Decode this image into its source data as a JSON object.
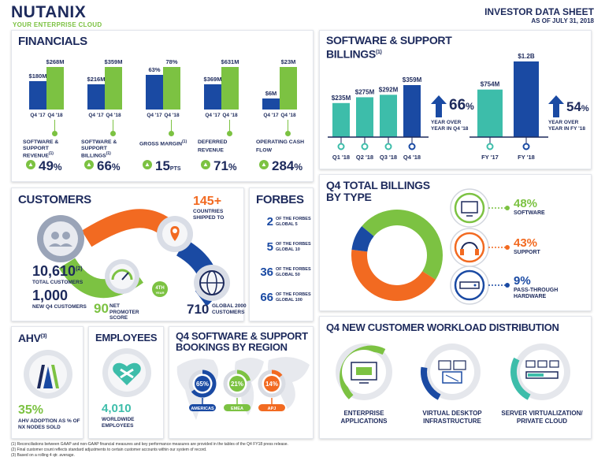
{
  "header": {
    "logo": "NUTANIX",
    "tagline": "YOUR ENTERPRISE CLOUD",
    "title": "INVESTOR DATA SHEET",
    "date": "AS OF JULY 31, 2018"
  },
  "financials": {
    "title": "FINANCIALS",
    "metrics": [
      {
        "label": "SOFTWARE & SUPPORT REVENUE",
        "sup": "(1)",
        "q417": 180,
        "q418": 268,
        "q417_label": "$180M",
        "q418_label": "$268M",
        "growth": "49",
        "growth_unit": "%"
      },
      {
        "label": "SOFTWARE & SUPPORT BILLINGS",
        "sup": "(1)",
        "q417": 216,
        "q418": 359,
        "q417_label": "$216M",
        "q418_label": "$359M",
        "growth": "66",
        "growth_unit": "%"
      },
      {
        "label": "GROSS MARGIN",
        "sup": "(1)",
        "q417": 63,
        "q418": 78,
        "q417_label": "63%",
        "q418_label": "78%",
        "growth": "15",
        "growth_unit": "PTS"
      },
      {
        "label": "DEFERRED REVENUE",
        "sup": "",
        "q417": 369,
        "q418": 631,
        "q417_label": "$369M",
        "q418_label": "$631M",
        "growth": "71",
        "growth_unit": "%"
      },
      {
        "label": "OPERATING CASH FLOW",
        "sup": "",
        "q417": 6,
        "q418": 23,
        "q417_label": "$6M",
        "q418_label": "$23M",
        "growth": "284",
        "growth_unit": "%"
      }
    ],
    "q417_tick": "Q4 '17",
    "q418_tick": "Q4 '18"
  },
  "billings": {
    "title": "SOFTWARE & SUPPORT BILLINGS",
    "sup": "(1)",
    "quarters": [
      {
        "label": "Q1 '18",
        "value": 235,
        "value_label": "$235M"
      },
      {
        "label": "Q2 '18",
        "value": 275,
        "value_label": "$275M"
      },
      {
        "label": "Q3 '18",
        "value": 292,
        "value_label": "$292M"
      },
      {
        "label": "Q4 '18",
        "value": 359,
        "value_label": "$359M"
      }
    ],
    "quarter_growth": "66",
    "quarter_growth_unit": "%",
    "quarter_growth_text": "YEAR OVER YEAR IN Q4 '18",
    "years": [
      {
        "label": "FY '17",
        "value": 754,
        "value_label": "$754M"
      },
      {
        "label": "FY '18",
        "value": 1200,
        "value_label": "$1.2B"
      }
    ],
    "year_growth": "54",
    "year_growth_unit": "%",
    "year_growth_text": "YEAR OVER YEAR IN FY '18"
  },
  "customers": {
    "title": "CUSTOMERS",
    "countries": "145+",
    "countries_text": "COUNTRIES SHIPPED TO",
    "total": "10,610",
    "total_sup": "(2)",
    "total_text": "TOTAL CUSTOMERS",
    "new": "1,000",
    "new_text": "NEW Q4 CUSTOMERS",
    "nps": "90",
    "nps_text": "NET PROMOTER SCORE",
    "nps_badge": "4TH",
    "nps_badge_sub": "YEAR",
    "global2000": "710",
    "global2000_text": "GLOBAL 2000 CUSTOMERS"
  },
  "forbes": {
    "title": "FORBES",
    "items": [
      {
        "num": "2",
        "line1": "OF THE FORBES",
        "line2": "GLOBAL 5"
      },
      {
        "num": "5",
        "line1": "OF THE FORBES",
        "line2": "GLOBAL 10"
      },
      {
        "num": "36",
        "line1": "OF THE FORBES",
        "line2": "GLOBAL 50"
      },
      {
        "num": "66",
        "line1": "OF THE FORBES",
        "line2": "GLOBAL 100"
      }
    ]
  },
  "billings_type": {
    "title_line1": "Q4 TOTAL BILLINGS",
    "title_line2": "BY TYPE",
    "slices": [
      {
        "name": "SOFTWARE",
        "value": 48,
        "label": "48%",
        "color": "#7cc242"
      },
      {
        "name": "SUPPORT",
        "value": 43,
        "label": "43%",
        "color": "#f26a21"
      },
      {
        "name": "PASS-THROUGH HARDWARE",
        "value": 9,
        "label": "9%",
        "color": "#1a4aa3"
      }
    ]
  },
  "ahv": {
    "title": "AHV",
    "sup": "(3)",
    "value": "35%",
    "text": "AHV ADOPTION AS % OF NX NODES SOLD"
  },
  "employees": {
    "title": "EMPLOYEES",
    "value": "4,010",
    "text": "WORLDWIDE EMPLOYEES"
  },
  "region": {
    "title_line1": "Q4 SOFTWARE & SUPPORT",
    "title_line2": "BOOKINGS BY REGION",
    "items": [
      {
        "name": "AMERICAS",
        "value": 65,
        "label": "65%",
        "color": "#1a4aa3"
      },
      {
        "name": "EMEA",
        "value": 21,
        "label": "21%",
        "color": "#7cc242"
      },
      {
        "name": "APJ",
        "value": 14,
        "label": "14%",
        "color": "#f26a21"
      }
    ]
  },
  "workload": {
    "title": "Q4 NEW CUSTOMER WORKLOAD DISTRIBUTION",
    "items": [
      {
        "line1": "ENTERPRISE",
        "line2": "APPLICATIONS",
        "color": "#7cc242",
        "fill": 0.55
      },
      {
        "line1": "VIRTUAL DESKTOP",
        "line2": "INFRASTRUCTURE",
        "color": "#1a4aa3",
        "fill": 0.2
      },
      {
        "line1": "SERVER VIRTUALIZATION/",
        "line2": "PRIVATE CLOUD",
        "color": "#3dbdaa",
        "fill": 0.25
      }
    ]
  },
  "footnotes": [
    "(1) Reconciliations between GAAP and non-GAAP financial measures and key performance measures are provided in the tables of the Q4 FY18 press release.",
    "(2) Final customer count reflects standard adjustments to certain customer accounts within our system of record.",
    "(3) Based on a rolling 4 qtr. average."
  ]
}
